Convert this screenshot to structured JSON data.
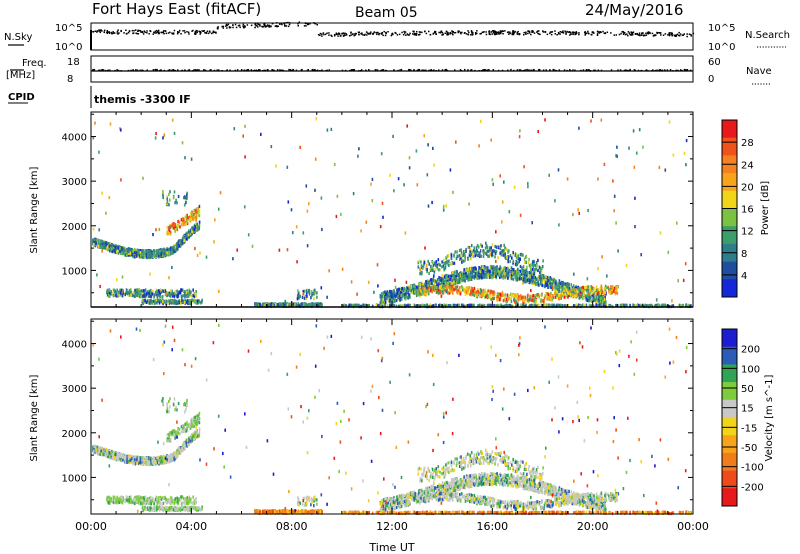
{
  "header": {
    "station": "Fort Hays East (fitACF)",
    "beam": "Beam 05",
    "date": "24/May/2016"
  },
  "status_panels": {
    "nsky_label": "N.Sky",
    "nsky_ticks": [
      "10^5",
      "10^0"
    ],
    "nsearch_label": "N.Search",
    "nsearch_ticks": [
      "10^5",
      "10^0"
    ],
    "freq_label": "Freq.",
    "freq_unit": "[MHz]",
    "freq_ticks": [
      "18",
      "8"
    ],
    "nave_label": "Nave",
    "nave_ticks": [
      "60",
      "0"
    ],
    "cpid_label": "CPID",
    "cpid_value": "themis -3300 IF"
  },
  "chart_data": [
    {
      "type": "heatmap",
      "name": "power",
      "ylabel": "Slant Range [km]",
      "ylim": [
        180,
        4550
      ],
      "yticks": [
        "4000",
        "3000",
        "2000",
        "1000"
      ],
      "yticks_values": [
        4000,
        3000,
        2000,
        1000
      ],
      "x_range_hours": [
        0,
        24
      ],
      "xticks": [
        "00:00",
        "04:00",
        "08:00",
        "12:00",
        "16:00",
        "20:00",
        "00:00"
      ],
      "colorbar": {
        "label": "Power [dB]",
        "ticks": [
          "28",
          "24",
          "20",
          "16",
          "12",
          "8",
          "4"
        ],
        "colors": [
          "#e8191a",
          "#f1521a",
          "#f58220",
          "#f7a41a",
          "#f2d41a",
          "#7cc242",
          "#3d9e6a",
          "#2e7d8c",
          "#1f4ea0",
          "#1428d8"
        ]
      }
    },
    {
      "type": "heatmap",
      "name": "velocity",
      "ylabel": "Slant Range [km]",
      "xlabel": "Time UT",
      "ylim": [
        180,
        4550
      ],
      "yticks": [
        "4000",
        "3000",
        "2000",
        "1000"
      ],
      "yticks_values": [
        4000,
        3000,
        2000,
        1000
      ],
      "x_range_hours": [
        0,
        24
      ],
      "xticks": [
        "00:00",
        "04:00",
        "08:00",
        "12:00",
        "16:00",
        "20:00",
        "00:00"
      ],
      "colorbar": {
        "label": "Velocity [m s^-1]",
        "ticks": [
          "200",
          "100",
          "50",
          "15",
          "-15",
          "-50",
          "-100",
          "-200"
        ],
        "colors": [
          "#1c1cd0",
          "#2b5db8",
          "#31a354",
          "#7ccc3c",
          "#c8c8c8",
          "#f2d41a",
          "#f7a41a",
          "#f17d1a",
          "#ee4a1a",
          "#e8191a"
        ]
      }
    }
  ]
}
